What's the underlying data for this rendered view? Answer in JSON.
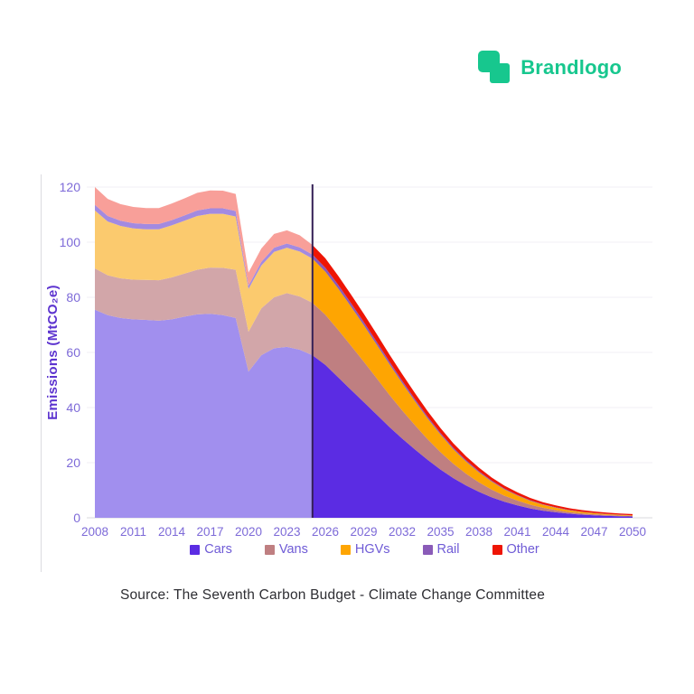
{
  "brand": {
    "name": "Brandlogo",
    "color": "#17c78e"
  },
  "caption": {
    "text": "Source: The Seventh Carbon Budget - Climate Change Committee"
  },
  "chart_data": {
    "type": "area",
    "stacked": true,
    "title": "",
    "xlabel": "",
    "ylabel": "Emissions (MtCO₂e)",
    "ylim": [
      0,
      120
    ],
    "y_ticks": [
      0,
      20,
      40,
      60,
      80,
      100,
      120
    ],
    "x": [
      2008,
      2009,
      2010,
      2011,
      2012,
      2013,
      2014,
      2015,
      2016,
      2017,
      2018,
      2019,
      2020,
      2021,
      2022,
      2023,
      2024,
      2025,
      2026,
      2027,
      2028,
      2029,
      2030,
      2031,
      2032,
      2033,
      2034,
      2035,
      2036,
      2037,
      2038,
      2039,
      2040,
      2041,
      2042,
      2043,
      2044,
      2045,
      2046,
      2047,
      2048,
      2049,
      2050
    ],
    "x_tick_years": [
      2008,
      2011,
      2014,
      2017,
      2020,
      2023,
      2026,
      2029,
      2032,
      2035,
      2038,
      2041,
      2044,
      2047,
      2050
    ],
    "projection_start_year": 2025,
    "projection_divider_color": "#342056",
    "grid": "horizontal",
    "legend_position": "bottom",
    "axis_text_color": "#7d6ad8",
    "axis_title_color": "#5c33cf",
    "legend_text_color": "#6f5bd6",
    "series": [
      {
        "name": "Cars",
        "color_hist": "#a18fee",
        "color_proj": "#5b2ce3",
        "values": [
          75.5,
          73.5,
          72.5,
          72,
          71.8,
          71.5,
          72,
          73,
          73.8,
          74,
          73.5,
          72.5,
          53,
          59,
          61.5,
          62,
          61,
          59,
          55.5,
          51,
          46.5,
          42,
          37.5,
          33,
          28.8,
          24.8,
          21,
          17.5,
          14.4,
          11.7,
          9.4,
          7.4,
          5.8,
          4.5,
          3.4,
          2.6,
          2,
          1.5,
          1.15,
          0.9,
          0.7,
          0.55,
          0.45
        ]
      },
      {
        "name": "Vans",
        "color_hist": "#d2a6a9",
        "color_proj": "#bf7f81",
        "values": [
          15,
          14.5,
          14.4,
          14.4,
          14.5,
          14.7,
          15.2,
          15.6,
          16.2,
          16.8,
          17.2,
          17.5,
          14.5,
          17,
          18.5,
          19.5,
          19.3,
          19,
          18.2,
          17.2,
          16,
          14.7,
          13.2,
          11.7,
          10.2,
          8.8,
          7.5,
          6.3,
          5.2,
          4.3,
          3.5,
          2.8,
          2.2,
          1.75,
          1.35,
          1.05,
          0.8,
          0.6,
          0.48,
          0.38,
          0.3,
          0.25,
          0.2
        ]
      },
      {
        "name": "HGVs",
        "color_hist": "#fbca6e",
        "color_proj": "#fea502",
        "values": [
          21,
          19.5,
          19,
          18.6,
          18.4,
          18.5,
          18.9,
          19.2,
          19.5,
          19.5,
          19.6,
          19.3,
          15.5,
          15.5,
          16.5,
          16.5,
          16.3,
          16,
          15.6,
          15,
          14.2,
          13.2,
          12.2,
          11.1,
          9.9,
          8.7,
          7.5,
          6.4,
          5.3,
          4.4,
          3.6,
          2.9,
          2.3,
          1.8,
          1.4,
          1.1,
          0.85,
          0.65,
          0.5,
          0.4,
          0.32,
          0.26,
          0.2
        ]
      },
      {
        "name": "Rail",
        "color_hist": "#a38ae0",
        "color_proj": "#8a5bb8",
        "values": [
          2,
          2,
          1.9,
          1.9,
          1.9,
          1.9,
          1.9,
          1.9,
          2,
          2,
          2,
          2,
          1.2,
          1.4,
          1.5,
          1.5,
          1.5,
          1.5,
          1.45,
          1.35,
          1.25,
          1.15,
          1.05,
          0.95,
          0.85,
          0.75,
          0.65,
          0.55,
          0.5,
          0.45,
          0.4,
          0.35,
          0.3,
          0.25,
          0.2,
          0.18,
          0.15,
          0.13,
          0.11,
          0.1,
          0.09,
          0.08,
          0.07
        ]
      },
      {
        "name": "Other",
        "color_hist": "#f89f99",
        "color_proj": "#ee1505",
        "values": [
          6.5,
          6.2,
          6,
          5.9,
          5.8,
          5.8,
          6,
          6.2,
          6.4,
          6.5,
          6.4,
          6.2,
          4.8,
          4.8,
          5,
          4.8,
          4.4,
          3.5,
          3.4,
          3.3,
          3.1,
          3,
          2.8,
          2.6,
          2.4,
          2.2,
          2,
          1.8,
          1.6,
          1.45,
          1.3,
          1.15,
          1.05,
          0.95,
          0.85,
          0.75,
          0.7,
          0.62,
          0.57,
          0.52,
          0.48,
          0.45,
          0.43
        ]
      }
    ]
  }
}
